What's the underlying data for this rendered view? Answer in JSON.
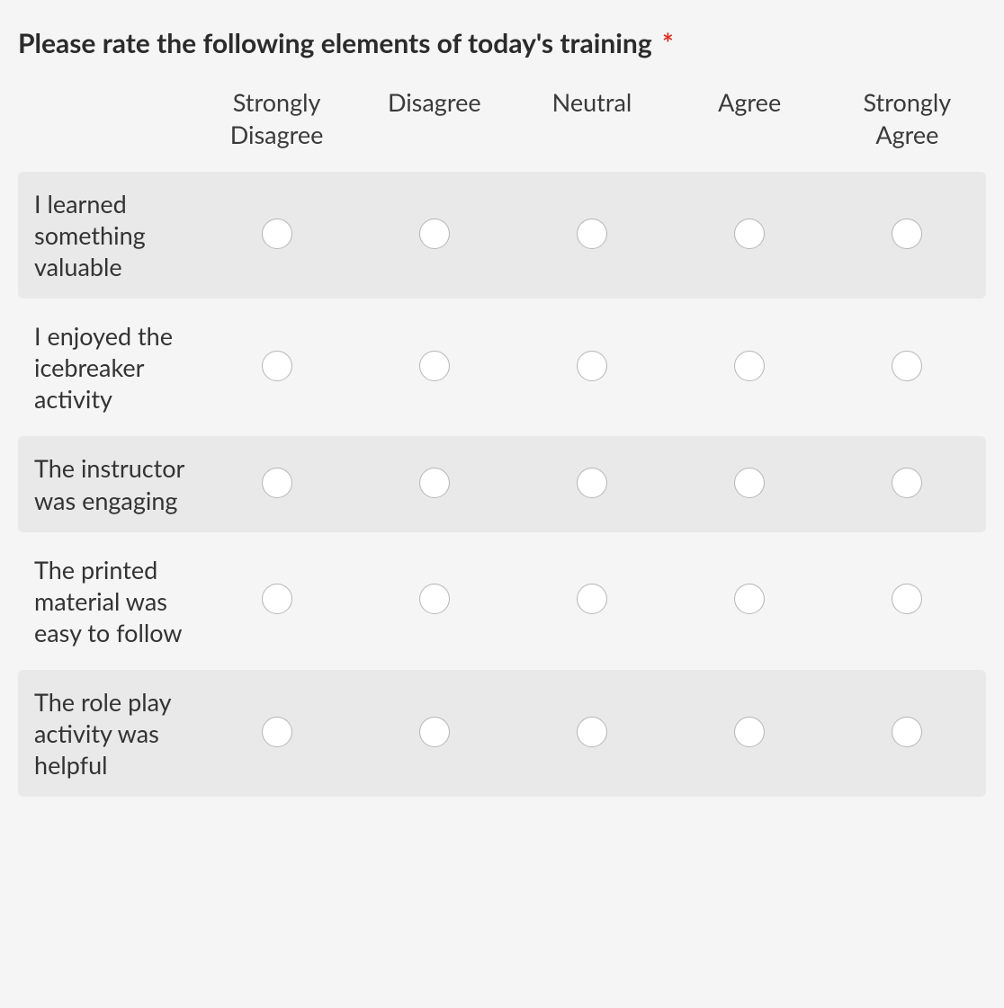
{
  "question": {
    "title": "Please rate the following elements of today's training",
    "required_marker": "*",
    "required_color": "#d93025"
  },
  "likert": {
    "type": "table",
    "columns": [
      "Strongly Disagree",
      "Disagree",
      "Neutral",
      "Agree",
      "Strongly Agree"
    ],
    "rows": [
      {
        "label": "I learned something valuable"
      },
      {
        "label": "I enjoyed the icebreaker activity"
      },
      {
        "label": "The instructor was engaging"
      },
      {
        "label": "The printed material was easy to follow"
      },
      {
        "label": "The role play activity was helpful"
      }
    ],
    "row_shade_color": "#e9e9e9",
    "background_color": "#f5f5f5",
    "radio_border_color": "#b8b8b8",
    "radio_fill_color": "#ffffff",
    "text_color": "#333333",
    "header_fontsize": 27,
    "row_label_fontsize": 27,
    "title_fontsize": 30
  }
}
